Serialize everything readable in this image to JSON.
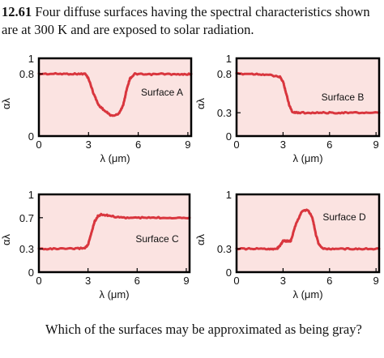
{
  "problem": {
    "number": "12.61",
    "statement": "Four diffuse surfaces having the spectral characteristics shown are at 300 K and are exposed to solar radiation."
  },
  "question": "Which of the surfaces may be approximated as being gray?",
  "colors": {
    "plot_fill": "#fbe3e1",
    "curve": "#d9363e",
    "frame": "#000000"
  },
  "chart_data": [
    {
      "type": "line",
      "title": "Surface A",
      "xlabel": "λ (μm)",
      "ylabel": "αλ",
      "xlim": [
        0,
        9.2
      ],
      "ylim": [
        0,
        1
      ],
      "xticks": [
        "0",
        "3",
        "6",
        "9"
      ],
      "yticks": [
        "0",
        "0.8",
        "1"
      ],
      "series": [
        {
          "name": "Surface A",
          "x": [
            0,
            1,
            2,
            2.8,
            3.0,
            3.3,
            3.6,
            4.0,
            4.4,
            4.8,
            5.1,
            5.3,
            5.5,
            5.8,
            6.5,
            7.5,
            8.5,
            9.2
          ],
          "y": [
            0.8,
            0.8,
            0.8,
            0.8,
            0.74,
            0.55,
            0.4,
            0.32,
            0.26,
            0.28,
            0.4,
            0.6,
            0.74,
            0.8,
            0.79,
            0.8,
            0.79,
            0.8
          ]
        }
      ]
    },
    {
      "type": "line",
      "title": "Surface B",
      "xlabel": "λ (μm)",
      "ylabel": "αλ",
      "xlim": [
        0,
        9.2
      ],
      "ylim": [
        0,
        1
      ],
      "xticks": [
        "0",
        "3",
        "6",
        "9"
      ],
      "yticks": [
        "0",
        "0.3",
        "0.8",
        "1"
      ],
      "series": [
        {
          "name": "Surface B",
          "x": [
            0,
            1,
            2,
            2.8,
            3.0,
            3.2,
            3.4,
            3.6,
            4.0,
            5,
            6,
            7,
            8,
            9.2
          ],
          "y": [
            0.8,
            0.8,
            0.79,
            0.76,
            0.7,
            0.55,
            0.4,
            0.31,
            0.3,
            0.3,
            0.3,
            0.3,
            0.3,
            0.3
          ]
        }
      ]
    },
    {
      "type": "line",
      "title": "Surface C",
      "xlabel": "λ (μm)",
      "ylabel": "αλ",
      "xlim": [
        0,
        9.2
      ],
      "ylim": [
        0,
        1
      ],
      "xticks": [
        "0",
        "3",
        "6",
        "9"
      ],
      "yticks": [
        "0",
        "0.3",
        "0.7",
        "1"
      ],
      "series": [
        {
          "name": "Surface C",
          "x": [
            0,
            1,
            2,
            2.8,
            3.0,
            3.2,
            3.4,
            3.6,
            3.8,
            4.2,
            5,
            6,
            7,
            8,
            9.2
          ],
          "y": [
            0.3,
            0.3,
            0.3,
            0.31,
            0.35,
            0.5,
            0.65,
            0.72,
            0.74,
            0.73,
            0.7,
            0.7,
            0.7,
            0.7,
            0.7
          ]
        }
      ]
    },
    {
      "type": "line",
      "title": "Surface D",
      "xlabel": "λ (μm)",
      "ylabel": "αλ",
      "xlim": [
        0,
        9.2
      ],
      "ylim": [
        0,
        1
      ],
      "xticks": [
        "0",
        "3",
        "6",
        "9"
      ],
      "yticks": [
        "0",
        "0.3",
        "1"
      ],
      "series": [
        {
          "name": "Surface D",
          "x": [
            0,
            1,
            2,
            2.6,
            2.8,
            3.0,
            3.2,
            3.5,
            3.8,
            4.2,
            4.6,
            4.9,
            5.1,
            5.3,
            5.6,
            6,
            7,
            8,
            9.2
          ],
          "y": [
            0.3,
            0.3,
            0.3,
            0.3,
            0.34,
            0.4,
            0.4,
            0.4,
            0.6,
            0.78,
            0.8,
            0.7,
            0.5,
            0.36,
            0.3,
            0.3,
            0.3,
            0.3,
            0.3
          ]
        }
      ]
    }
  ]
}
